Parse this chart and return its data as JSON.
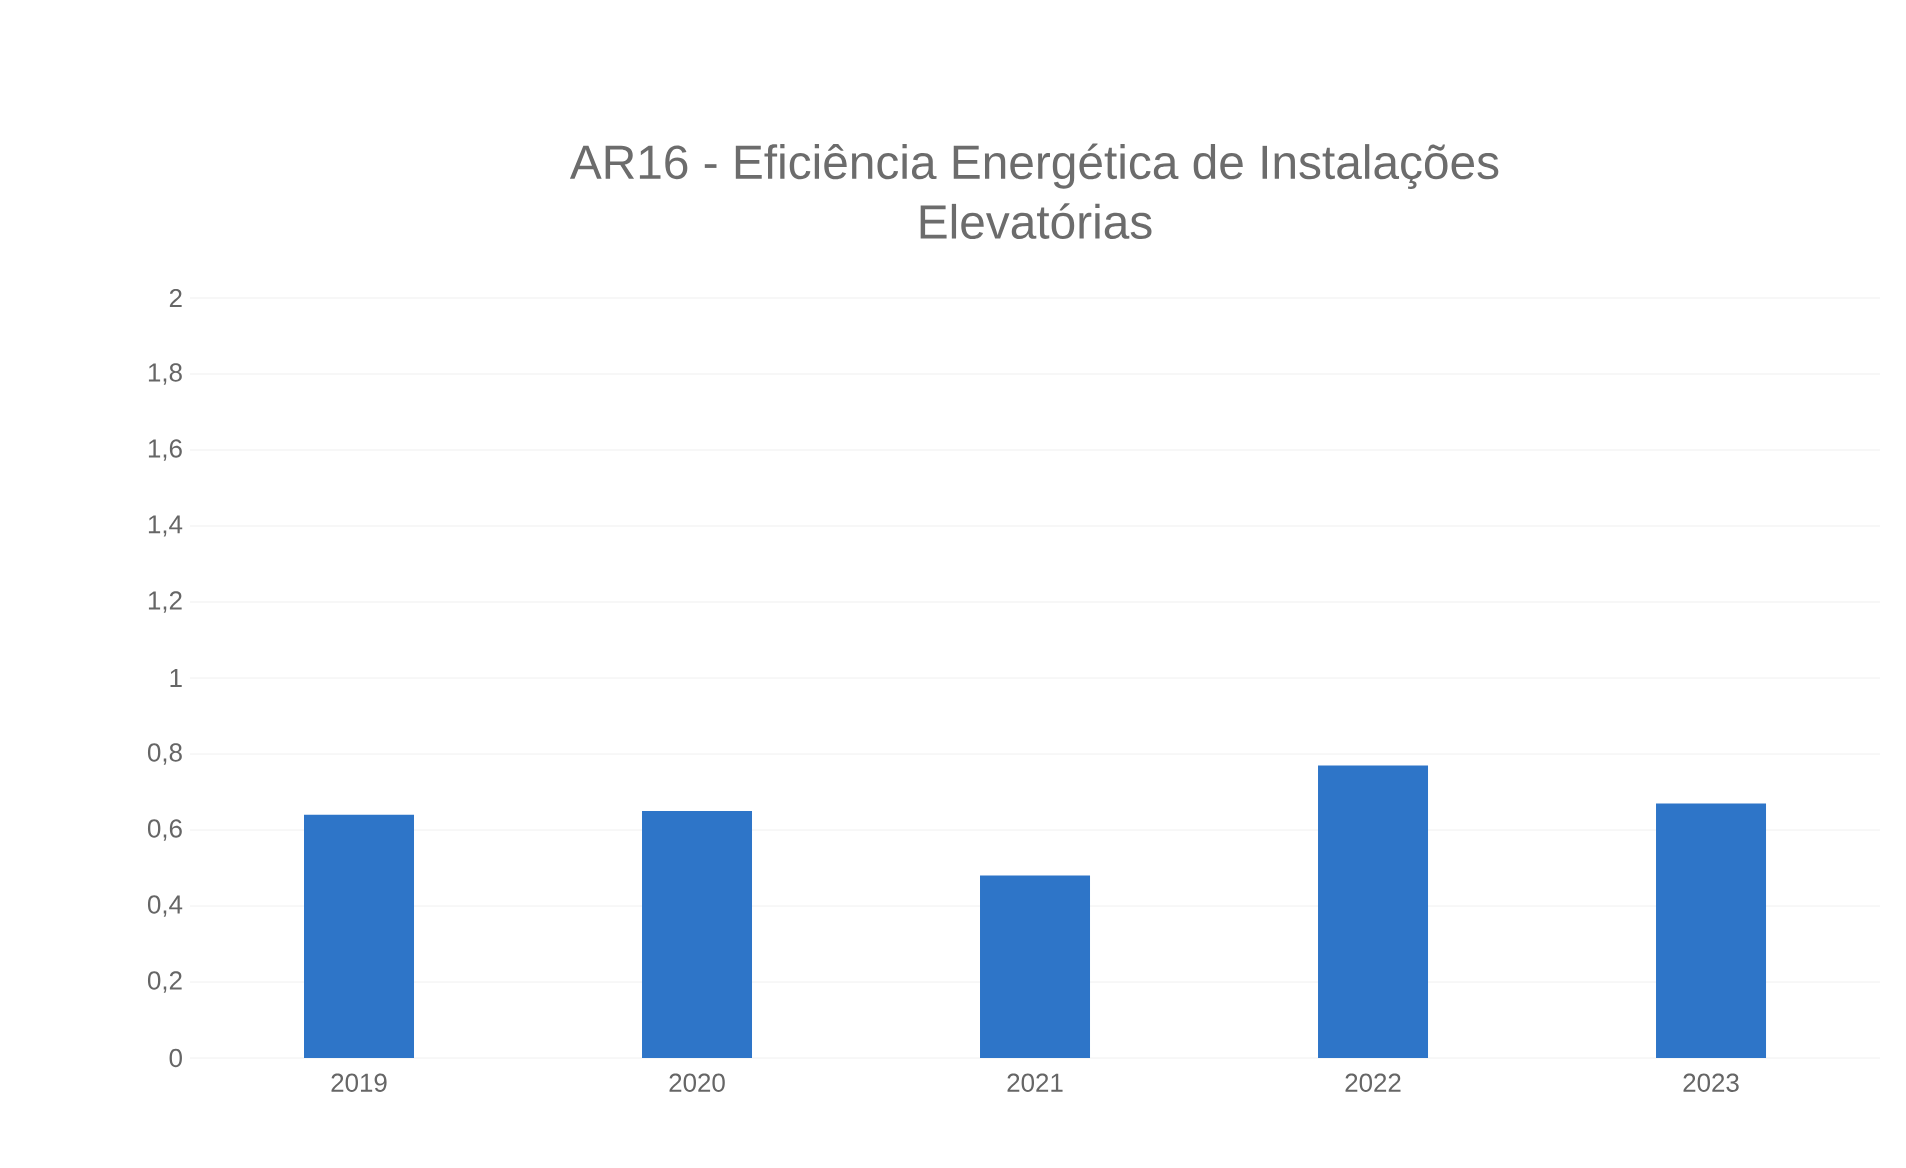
{
  "chart_data": {
    "type": "bar",
    "title": "AR16 - Eficiência Energética de Instalações Elevatórias",
    "categories": [
      "2019",
      "2020",
      "2021",
      "2022",
      "2023"
    ],
    "values": [
      0.64,
      0.65,
      0.48,
      0.77,
      0.67
    ],
    "color": "#2e75c8",
    "ylim": [
      0,
      2
    ],
    "yticks": [
      0,
      {
        "value": 0.2,
        "label": "0,2"
      },
      {
        "value": 0.4,
        "label": "0,4"
      },
      {
        "value": 0.6,
        "label": "0,6"
      },
      {
        "value": 0.8,
        "label": "0,8"
      },
      1,
      {
        "value": 1.2,
        "label": "1,2"
      },
      {
        "value": 1.4,
        "label": "1,4"
      },
      {
        "value": 1.6,
        "label": "1,6"
      },
      {
        "value": 1.8,
        "label": "1,8"
      },
      2
    ],
    "grid": "y"
  }
}
